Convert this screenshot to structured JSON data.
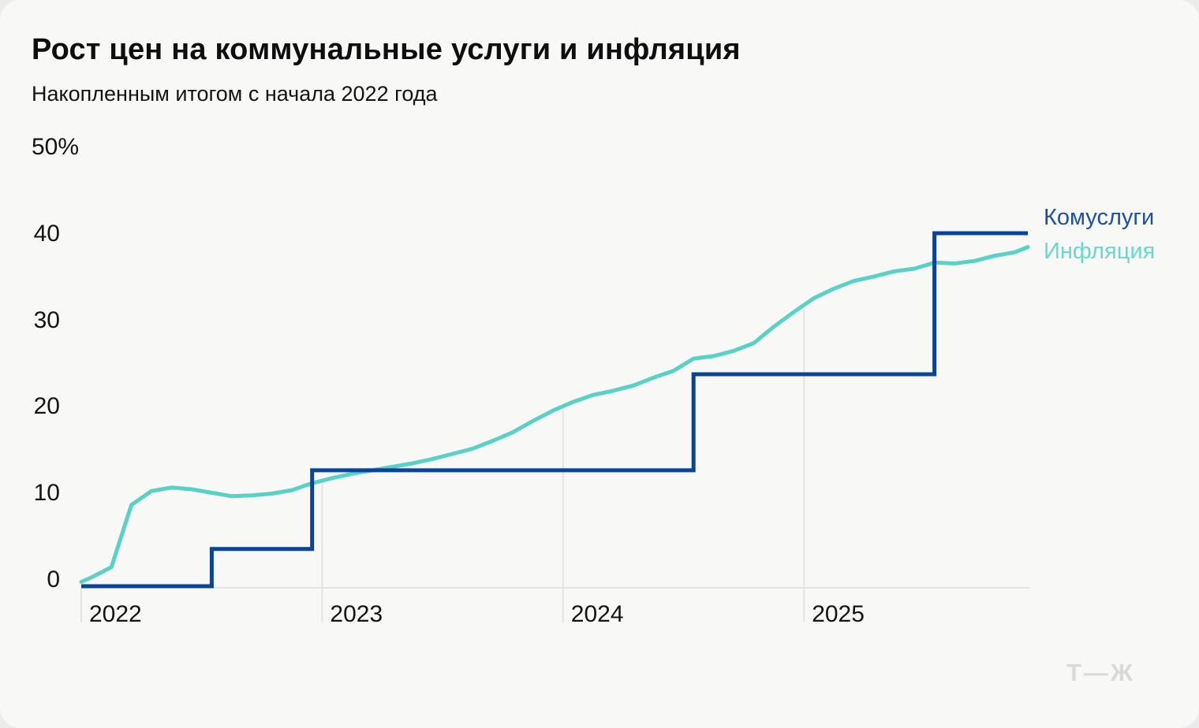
{
  "card": {
    "title": "Рост цен на коммунальные услуги и инфляция",
    "subtitle": "Накопленным итогом с начала 2022 года",
    "logo": "Т—Ж"
  },
  "colors": {
    "utilities_line": "#0a4496",
    "utilities_label": "#1d52a3",
    "inflation_line": "#58d1c6",
    "inflation_label": "#68d8cd",
    "grid": "#e5e5e3",
    "axis": "#e3e3e1",
    "tick_text": "#141414",
    "title_text": "#0e0e0e",
    "logo_gray": "#d9d9d9",
    "card_bg": "#f8f8f7",
    "page_bg": "#ececec"
  },
  "chart_data": {
    "type": "line",
    "title": "Рост цен на коммунальные услуги и инфляция",
    "subtitle": "Накопленным итогом с начала 2022 года",
    "unit": "%",
    "ylim": [
      0,
      50
    ],
    "grid": "vertical-year-gridlines-up-to-inflation-curve, no-horizontal-gridlines",
    "legend_position": "right-of-line-ends",
    "y_ticks": [
      {
        "value": 0,
        "label": "0"
      },
      {
        "value": 10,
        "label": "10"
      },
      {
        "value": 20,
        "label": "20"
      },
      {
        "value": 30,
        "label": "30"
      },
      {
        "value": 40,
        "label": "40"
      },
      {
        "value": 50,
        "label": "50%"
      }
    ],
    "x_ticks": [
      "2022",
      "2023",
      "2024",
      "2025"
    ],
    "months": [
      "2022-01",
      "2022-02",
      "2022-03",
      "2022-04",
      "2022-05",
      "2022-06",
      "2022-07",
      "2022-08",
      "2022-09",
      "2022-10",
      "2022-11",
      "2022-12",
      "2023-01",
      "2023-02",
      "2023-03",
      "2023-04",
      "2023-05",
      "2023-06",
      "2023-07",
      "2023-08",
      "2023-09",
      "2023-10",
      "2023-11",
      "2023-12",
      "2024-01",
      "2024-02",
      "2024-03",
      "2024-04",
      "2024-05",
      "2024-06",
      "2024-07",
      "2024-08",
      "2024-09",
      "2024-10",
      "2024-11",
      "2024-12",
      "2025-01",
      "2025-02",
      "2025-03",
      "2025-04",
      "2025-05",
      "2025-06",
      "2025-07",
      "2025-08",
      "2025-09",
      "2025-10",
      "2025-11",
      "2025-12"
    ],
    "series": [
      {
        "name": "Комуслуги",
        "render": "step",
        "color": "#0a4496",
        "start_value": 0,
        "values": [
          0,
          0,
          0,
          0,
          0,
          0,
          4.3,
          4.3,
          4.3,
          4.3,
          4.3,
          13.4,
          13.4,
          13.4,
          13.4,
          13.4,
          13.4,
          13.4,
          13.4,
          13.4,
          13.4,
          13.4,
          13.4,
          13.4,
          13.4,
          13.4,
          13.4,
          13.4,
          13.4,
          13.4,
          24.5,
          24.5,
          24.5,
          24.5,
          24.5,
          24.5,
          24.5,
          24.5,
          24.5,
          24.5,
          24.5,
          24.5,
          40.8,
          40.8,
          40.8,
          40.8,
          40.8,
          40.8
        ]
      },
      {
        "name": "Инфляция",
        "render": "line",
        "color": "#58d1c6",
        "start_value": 0.5,
        "values": [
          1.0,
          2.2,
          9.4,
          11.0,
          11.4,
          11.2,
          10.8,
          10.4,
          10.5,
          10.7,
          11.1,
          11.9,
          12.5,
          13.0,
          13.4,
          13.8,
          14.2,
          14.7,
          15.3,
          15.9,
          16.8,
          17.8,
          19.1,
          20.3,
          21.3,
          22.1,
          22.6,
          23.2,
          24.1,
          24.9,
          26.3,
          26.6,
          27.2,
          28.1,
          30.0,
          31.7,
          33.3,
          34.4,
          35.3,
          35.8,
          36.4,
          36.7,
          37.4,
          37.3,
          37.6,
          38.2,
          38.6,
          39.2
        ]
      }
    ]
  }
}
